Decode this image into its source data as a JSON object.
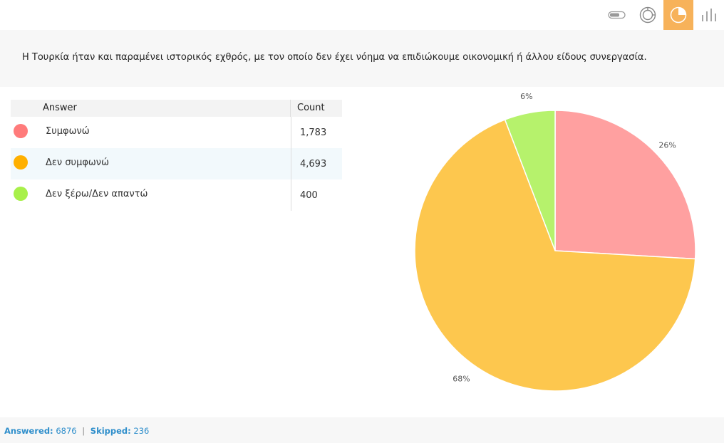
{
  "toolbar": {
    "buttons": [
      {
        "icon": "horizontal-bar-icon",
        "active": false
      },
      {
        "icon": "donut-icon",
        "active": false
      },
      {
        "icon": "pie-icon",
        "active": true
      },
      {
        "icon": "column-chart-icon",
        "active": false
      }
    ],
    "accent": "#f7b25a"
  },
  "question": "Η Τουρκία ήταν και παραμένει ιστορικός εχθρός, με τον οποίο δεν έχει νόημα να επιδιώκουμε οικονομική ή άλλου είδους συνεργασία.",
  "table": {
    "headers": {
      "answer": "Answer",
      "count": "Count"
    },
    "rows": [
      {
        "label": "Συμφωνώ",
        "count": "1,783",
        "color": "#ff7b7b"
      },
      {
        "label": "Δεν συμφωνώ",
        "count": "4,693",
        "color": "#ffb000"
      },
      {
        "label": "Δεν ξέρω/Δεν απαντώ",
        "count": "400",
        "color": "#a8f04a"
      }
    ]
  },
  "chart_data": {
    "type": "pie",
    "categories": [
      "Συμφωνώ",
      "Δεν συμφωνώ",
      "Δεν ξέρω/Δεν απαντώ"
    ],
    "values": [
      1783,
      4693,
      400
    ],
    "percent_labels": [
      "26%",
      "68%",
      "6%"
    ],
    "colors": [
      "#ffa0a0",
      "#fdc74e",
      "#b6f26c"
    ]
  },
  "footer": {
    "answered_label": "Answered:",
    "answered": "6876",
    "separator": "|",
    "skipped_label": "Skipped:",
    "skipped": "236"
  }
}
